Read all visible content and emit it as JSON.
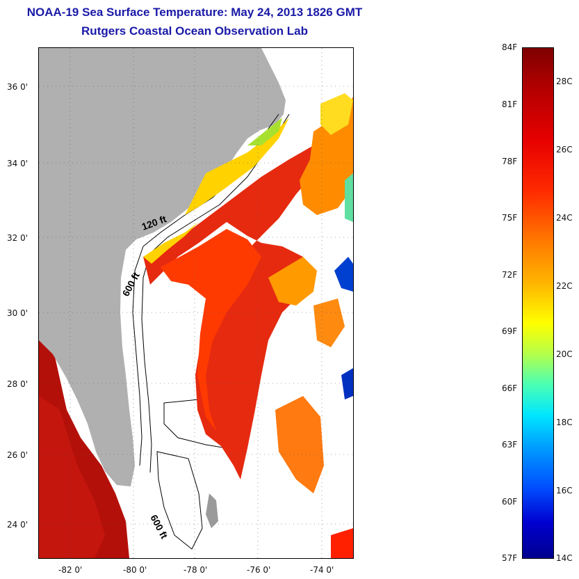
{
  "title": {
    "line1": "NOAA-19 Sea Surface Temperature:  May 24, 2013 1826 GMT",
    "line2": "Rutgers Coastal Ocean Observation Lab"
  },
  "map": {
    "lat_labels": [
      "36 0'",
      "34 0'",
      "32 0'",
      "30 0'",
      "28 0'",
      "26 0'",
      "24 0'"
    ],
    "lon_labels": [
      "-82 0'",
      "-80 0'",
      "-78 0'",
      "-76 0'",
      "-74 0'"
    ],
    "contour_labels": [
      "120 ft",
      "600 ft",
      "600 ft"
    ],
    "colors": {
      "land": "#b0b0b0",
      "cloud": "#ffffff",
      "warm_water": "#e62a10",
      "gulf_water": "#b4100a"
    }
  },
  "colorbar": {
    "fahrenheit_labels": [
      "84F",
      "81F",
      "78F",
      "75F",
      "72F",
      "69F",
      "66F",
      "63F",
      "60F",
      "57F"
    ],
    "celsius_labels": [
      "28C",
      "26C",
      "24C",
      "22C",
      "20C",
      "18C",
      "16C",
      "14C"
    ],
    "range_f": [
      57,
      84
    ],
    "range_c": [
      13.9,
      28.9
    ]
  }
}
